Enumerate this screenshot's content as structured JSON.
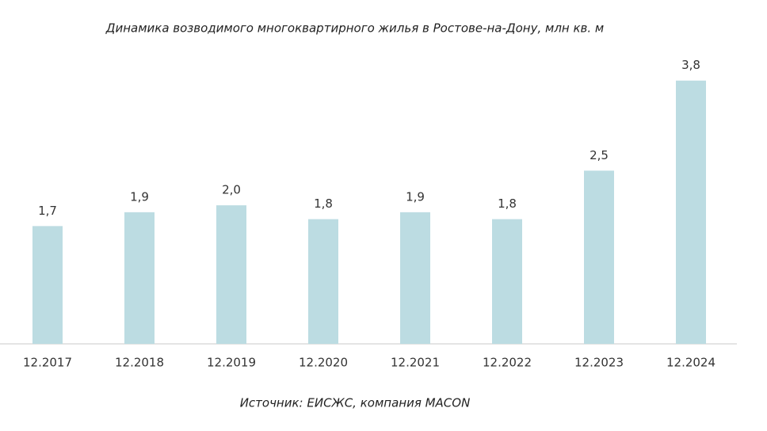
{
  "chart_data": {
    "type": "bar",
    "title": "Динамика возводимого многоквартирного жилья в Ростове-на-Дону, млн кв. м",
    "categories": [
      "12.2017",
      "12.2018",
      "12.2019",
      "12.2020",
      "12.2021",
      "12.2022",
      "12.2023",
      "12.2024"
    ],
    "values": [
      1.7,
      1.9,
      2.0,
      1.8,
      1.9,
      1.8,
      2.5,
      3.8
    ],
    "value_labels": [
      "1,7",
      "1,9",
      "2,0",
      "1,8",
      "1,9",
      "1,8",
      "2,5",
      "3,8"
    ],
    "color": "#bcdce2",
    "ylim": [
      0,
      4.3
    ],
    "source": "Источник: ЕИСЖС, компания MACON"
  }
}
